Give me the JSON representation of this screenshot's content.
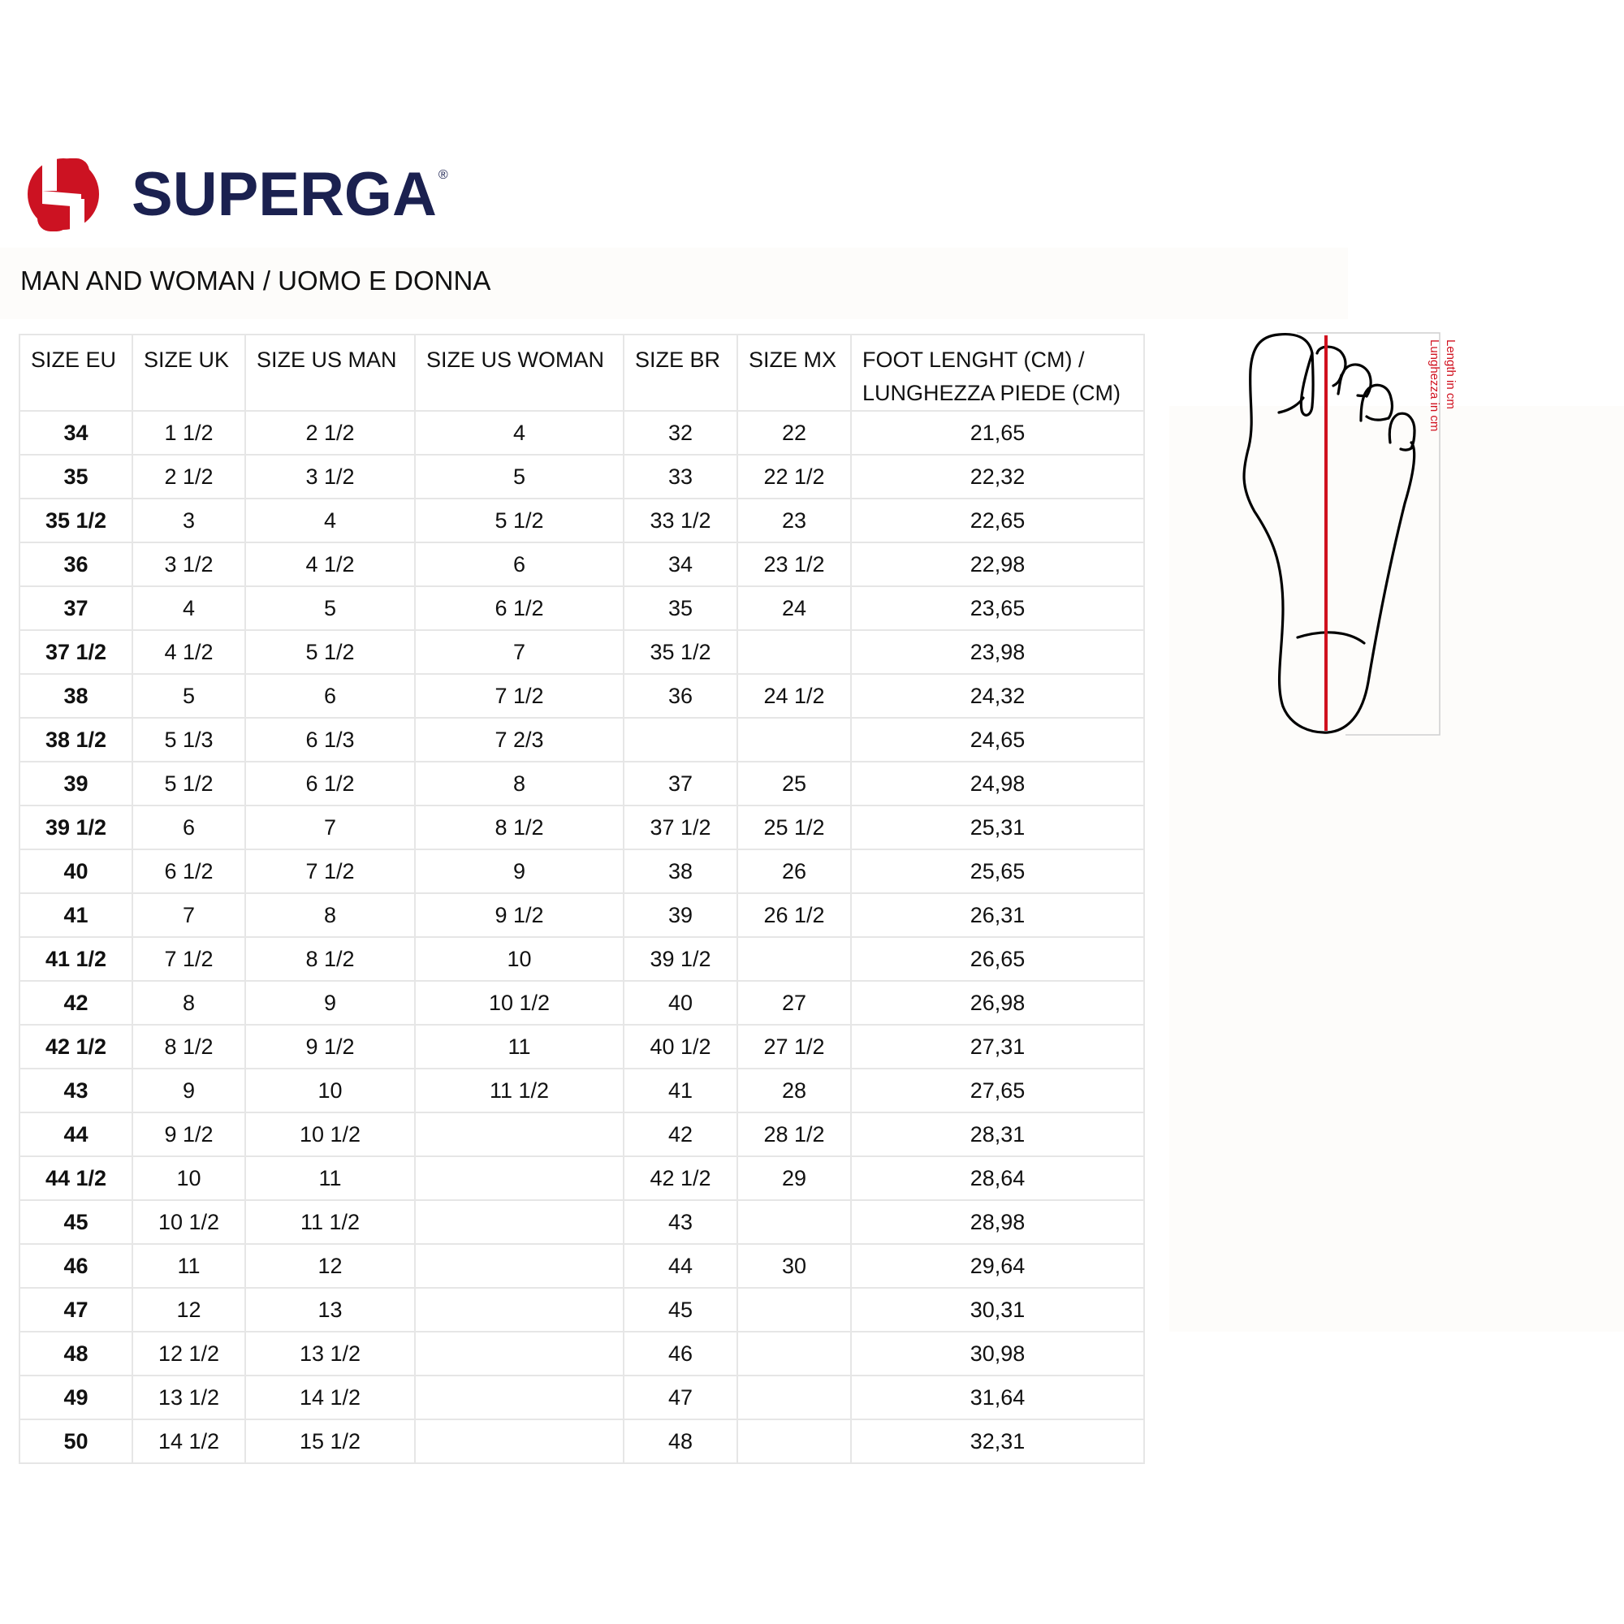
{
  "brand": {
    "name": "SUPERGA",
    "registered": "®",
    "colors": {
      "red": "#cc1222",
      "navy": "#1b2150"
    }
  },
  "title": "MAN AND WOMAN / UOMO E DONNA",
  "table": {
    "headers": [
      "SIZE EU",
      "SIZE UK",
      "SIZE US MAN",
      "SIZE US WOMAN",
      "SIZE BR",
      "SIZE MX",
      "FOOT LENGHT (CM) / LUNGHEZZA PIEDE (CM)"
    ],
    "rows": [
      [
        "34",
        "1 1/2",
        "2 1/2",
        "4",
        "32",
        "22",
        "21,65"
      ],
      [
        "35",
        "2 1/2",
        "3 1/2",
        "5",
        "33",
        "22 1/2",
        "22,32"
      ],
      [
        "35 1/2",
        "3",
        "4",
        "5 1/2",
        "33 1/2",
        "23",
        "22,65"
      ],
      [
        "36",
        "3 1/2",
        "4 1/2",
        "6",
        "34",
        "23 1/2",
        "22,98"
      ],
      [
        "37",
        "4",
        "5",
        "6 1/2",
        "35",
        "24",
        "23,65"
      ],
      [
        "37 1/2",
        "4 1/2",
        "5 1/2",
        "7",
        "35 1/2",
        "",
        "23,98"
      ],
      [
        "38",
        "5",
        "6",
        "7 1/2",
        "36",
        "24 1/2",
        "24,32"
      ],
      [
        "38 1/2",
        "5 1/3",
        "6 1/3",
        "7 2/3",
        "",
        "",
        "24,65"
      ],
      [
        "39",
        "5 1/2",
        "6 1/2",
        "8",
        "37",
        "25",
        "24,98"
      ],
      [
        "39 1/2",
        "6",
        "7",
        "8 1/2",
        "37 1/2",
        "25 1/2",
        "25,31"
      ],
      [
        "40",
        "6 1/2",
        "7 1/2",
        "9",
        "38",
        "26",
        "25,65"
      ],
      [
        "41",
        "7",
        "8",
        "9 1/2",
        "39",
        "26 1/2",
        "26,31"
      ],
      [
        "41 1/2",
        "7 1/2",
        "8 1/2",
        "10",
        "39 1/2",
        "",
        "26,65"
      ],
      [
        "42",
        "8",
        "9",
        "10 1/2",
        "40",
        "27",
        "26,98"
      ],
      [
        "42 1/2",
        "8 1/2",
        "9 1/2",
        "11",
        "40 1/2",
        "27 1/2",
        "27,31"
      ],
      [
        "43",
        "9",
        "10",
        "11 1/2",
        "41",
        "28",
        "27,65"
      ],
      [
        "44",
        "9 1/2",
        "10 1/2",
        "",
        "42",
        "28 1/2",
        "28,31"
      ],
      [
        "44 1/2",
        "10",
        "11",
        "",
        "42 1/2",
        "29",
        "28,64"
      ],
      [
        "45",
        "10 1/2",
        "11 1/2",
        "",
        "43",
        "",
        "28,98"
      ],
      [
        "46",
        "11",
        "12",
        "",
        "44",
        "30",
        "29,64"
      ],
      [
        "47",
        "12",
        "13",
        "",
        "45",
        "",
        "30,31"
      ],
      [
        "48",
        "12 1/2",
        "13 1/2",
        "",
        "46",
        "",
        "30,98"
      ],
      [
        "49",
        "13 1/2",
        "14 1/2",
        "",
        "47",
        "",
        "31,64"
      ],
      [
        "50",
        "14 1/2",
        "15 1/2",
        "",
        "48",
        "",
        "32,31"
      ]
    ]
  },
  "diagram": {
    "label_en": "Length in cm",
    "label_it": "Lunghezza in cm"
  }
}
